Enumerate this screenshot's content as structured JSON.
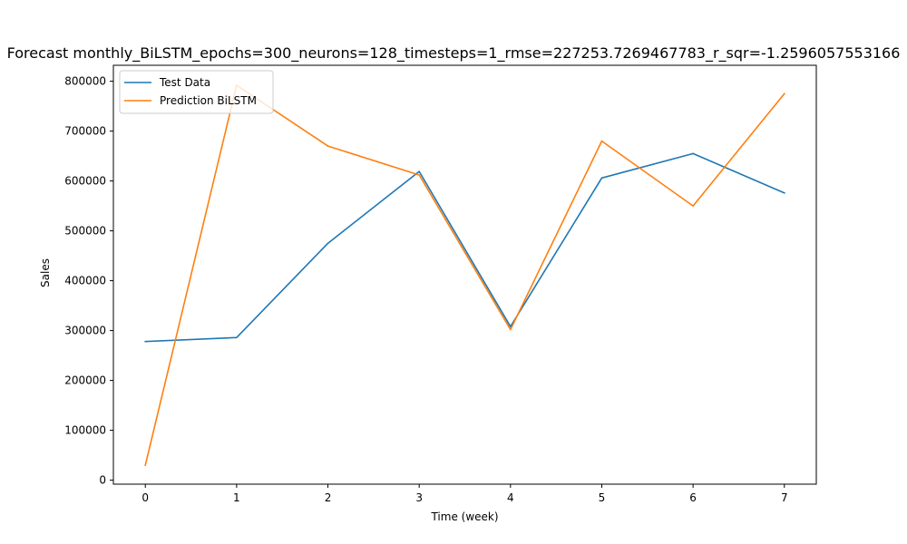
{
  "chart_data": {
    "type": "line",
    "title": "Forecast monthly_BiLSTM_epochs=300_neurons=128_timesteps=1_rmse=227253.7269467783_r_sqr=-1.2596057553166",
    "xlabel": "Time (week)",
    "ylabel": "Sales",
    "x": [
      0,
      1,
      2,
      3,
      4,
      5,
      6,
      7
    ],
    "xlim": [
      -0.35,
      7.35
    ],
    "ylim": [
      -8000,
      832000
    ],
    "xticks": [
      0,
      1,
      2,
      3,
      4,
      5,
      6,
      7
    ],
    "yticks": [
      0,
      100000,
      200000,
      300000,
      400000,
      500000,
      600000,
      700000,
      800000
    ],
    "grid": false,
    "legend_position": "upper left",
    "series": [
      {
        "name": "Test Data",
        "color": "#1f77b4",
        "values": [
          278000,
          286000,
          475000,
          619000,
          308000,
          606000,
          655000,
          576000
        ]
      },
      {
        "name": "Prediction BiLSTM",
        "color": "#ff7f0e",
        "values": [
          30000,
          792000,
          670000,
          612000,
          302000,
          680000,
          550000,
          775000
        ]
      }
    ]
  }
}
